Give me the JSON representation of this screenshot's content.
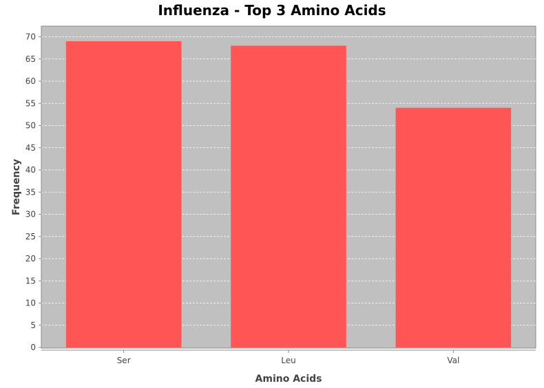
{
  "chart_data": {
    "type": "bar",
    "title": "Influenza - Top 3 Amino Acids",
    "xlabel": "Amino Acids",
    "ylabel": "Frequency",
    "categories": [
      "Ser",
      "Leu",
      "Val"
    ],
    "values": [
      69,
      68,
      54
    ],
    "ylim": [
      0,
      72
    ],
    "yticks": [
      0,
      5,
      10,
      15,
      20,
      25,
      30,
      35,
      40,
      45,
      50,
      55,
      60,
      65,
      70
    ],
    "grid": true,
    "legend": "none",
    "colors": {
      "bar": "#ff5555",
      "plot_background": "#c0c0c0",
      "gridline": "#ffffff",
      "axis": "#888888",
      "text": "#444444",
      "title": "#000000"
    }
  }
}
